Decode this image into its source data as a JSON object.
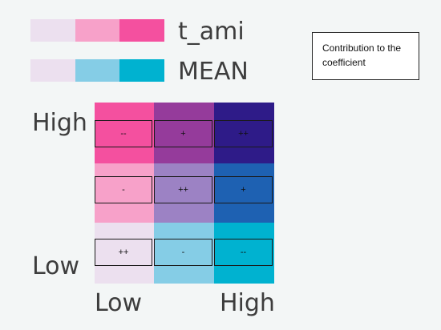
{
  "legend": {
    "rows": [
      {
        "label": "t_ami",
        "colors": [
          "#ece0ef",
          "#f7a1c9",
          "#f4509f"
        ]
      },
      {
        "label": "MEAN",
        "colors": [
          "#ece0ef",
          "#85cde6",
          "#00b2d0"
        ]
      }
    ]
  },
  "note": {
    "text": "Contribution to the coefficient"
  },
  "axes": {
    "y_high": "High",
    "y_low": "Low",
    "x_low": "Low",
    "x_high": "High"
  },
  "grid": {
    "rows": [
      [
        {
          "symbol": "--",
          "color": "#f4509f"
        },
        {
          "symbol": "+",
          "color": "#953b9b"
        },
        {
          "symbol": "++",
          "color": "#2e1b88"
        }
      ],
      [
        {
          "symbol": "-",
          "color": "#f7a1c9"
        },
        {
          "symbol": "++",
          "color": "#9c82c4"
        },
        {
          "symbol": "+",
          "color": "#1e61b2"
        }
      ],
      [
        {
          "symbol": "++",
          "color": "#ece0ef"
        },
        {
          "symbol": "-",
          "color": "#85cde6"
        },
        {
          "symbol": "--",
          "color": "#00b2d0"
        }
      ]
    ]
  }
}
